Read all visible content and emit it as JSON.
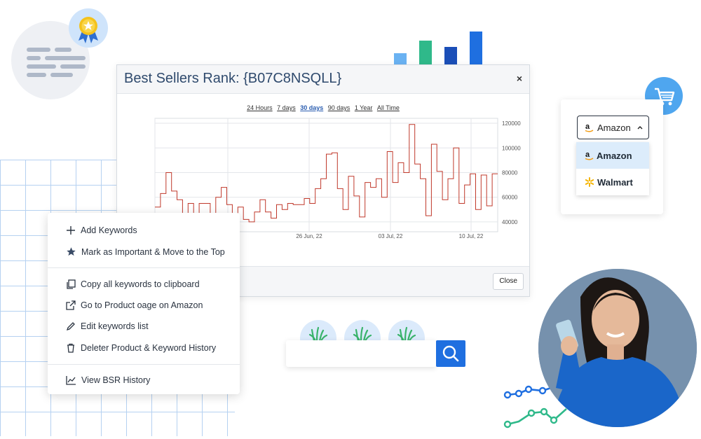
{
  "modal": {
    "title": "Best Sellers Rank: {B07C8NSQLL}",
    "close_x": "×",
    "close_button": "Close",
    "ranges": [
      "24 Hours",
      "7 days",
      "30 days",
      "90 days",
      "1 Year",
      "All Time"
    ],
    "active_range": "30 days"
  },
  "chart_data": {
    "type": "line",
    "x_tick_labels": [
      "26 Jun, 22",
      "03 Jul, 22",
      "10 Jul, 22"
    ],
    "y_tick_labels": [
      "120000",
      "100000",
      "80000",
      "60000",
      "40000"
    ],
    "ylim": [
      32000,
      124000
    ],
    "grid": true,
    "series": [
      {
        "color": "#c0392b",
        "values": [
          52000,
          63000,
          80000,
          65000,
          58000,
          47000,
          55000,
          46000,
          55000,
          55000,
          43000,
          60000,
          68000,
          54000,
          47000,
          52000,
          42000,
          40000,
          48000,
          58000,
          48000,
          43000,
          54000,
          50000,
          55000,
          54000,
          54000,
          59000,
          55000,
          67000,
          75000,
          95000,
          96000,
          67000,
          50000,
          77000,
          61000,
          44000,
          72000,
          68000,
          75000,
          60000,
          97000,
          72000,
          88000,
          80000,
          119000,
          87000,
          75000,
          45000,
          103000,
          81000,
          58000,
          75000,
          100000,
          55000,
          70000,
          79000,
          50000,
          78000,
          53000,
          79000
        ]
      }
    ]
  },
  "context_menu": {
    "add_keywords": "Add Keywords",
    "mark_important": "Mark as Important & Move to the Top",
    "copy_keywords": "Copy all keywords to clipboard",
    "go_to_product": "Go to Product oage on Amazon",
    "edit_keywords": "Edit keywords list",
    "delete_history": "Deleter Product & Keyword History",
    "view_bsr": "View BSR History"
  },
  "store_selector": {
    "selected": "Amazon",
    "options": [
      "Amazon",
      "Walmart"
    ]
  },
  "colors": {
    "accent": "#1f6fe0",
    "line": "#c0392b",
    "title": "#2f4a6d"
  },
  "icons": {
    "badge": "award-ribbon-icon",
    "cart": "shopping-cart-icon",
    "search": "search-icon"
  }
}
